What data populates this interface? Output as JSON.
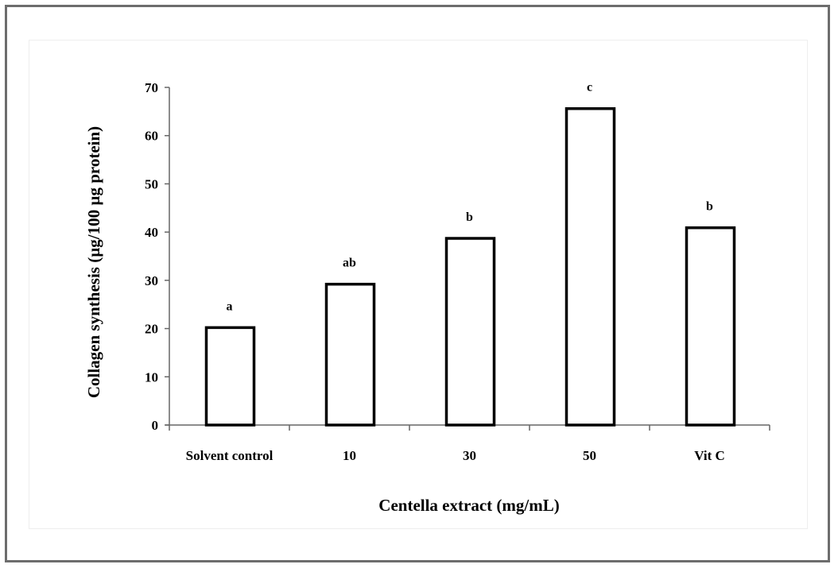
{
  "chart_data": {
    "type": "bar",
    "title": "",
    "xlabel": "Centella extract (mg/mL)",
    "ylabel": "Collagen synthesis  (µg/100  µg protein)",
    "categories": [
      "Solvent control",
      "10",
      "30",
      "50",
      "Vit C"
    ],
    "values": [
      20.2,
      29.2,
      38.7,
      65.6,
      40.9
    ],
    "annotations": [
      "a",
      "ab",
      "b",
      "c",
      "b"
    ],
    "ylim": [
      0,
      70
    ],
    "yticks": [
      "0",
      "10",
      "20",
      "30",
      "40",
      "50",
      "60",
      "70"
    ],
    "grid": false,
    "legend": "none",
    "bar_fill": "#ffffff",
    "bar_stroke": "#000000"
  }
}
